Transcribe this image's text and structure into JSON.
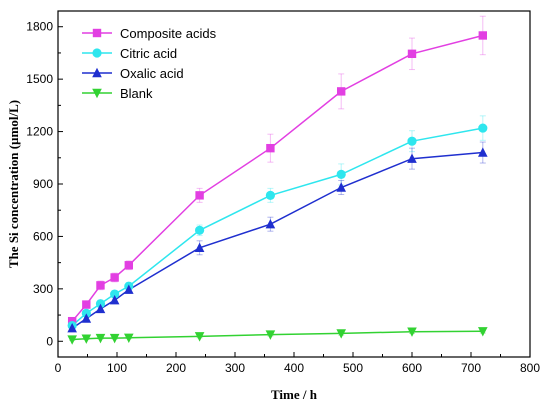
{
  "chart_data": {
    "type": "line",
    "xlabel": "Time / h",
    "ylabel": "The Si concentration (µmol/L)",
    "xlim": [
      0,
      800
    ],
    "ylim": [
      -90,
      1890
    ],
    "xticks": [
      0,
      100,
      200,
      300,
      400,
      500,
      600,
      700,
      800
    ],
    "yticks": [
      0,
      300,
      600,
      900,
      1200,
      1500,
      1800
    ],
    "grid": false,
    "legend_position": "top-left",
    "x": [
      24,
      48,
      72,
      96,
      120,
      240,
      360,
      480,
      600,
      720
    ],
    "series": [
      {
        "name": "Composite acids",
        "color": "#e23fe2",
        "marker": "square",
        "values": [
          115,
          210,
          320,
          365,
          435,
          835,
          1105,
          1430,
          1645,
          1750
        ],
        "errors": [
          20,
          20,
          25,
          25,
          25,
          40,
          80,
          100,
          90,
          110
        ]
      },
      {
        "name": "Citric acid",
        "color": "#2ee6ee",
        "marker": "circle",
        "values": [
          90,
          160,
          215,
          270,
          315,
          635,
          835,
          955,
          1145,
          1220
        ],
        "errors": [
          15,
          15,
          20,
          20,
          20,
          30,
          40,
          60,
          60,
          70
        ]
      },
      {
        "name": "Oxalic acid",
        "color": "#1f2fcf",
        "marker": "triangle-up",
        "values": [
          75,
          130,
          185,
          235,
          295,
          535,
          670,
          880,
          1045,
          1080
        ],
        "errors": [
          15,
          15,
          15,
          20,
          20,
          40,
          40,
          40,
          60,
          60
        ]
      },
      {
        "name": "Blank",
        "color": "#32d232",
        "marker": "triangle-down",
        "values": [
          10,
          15,
          18,
          18,
          20,
          28,
          38,
          45,
          55,
          57
        ],
        "errors": [
          5,
          5,
          5,
          5,
          5,
          8,
          8,
          10,
          10,
          10
        ]
      }
    ]
  }
}
